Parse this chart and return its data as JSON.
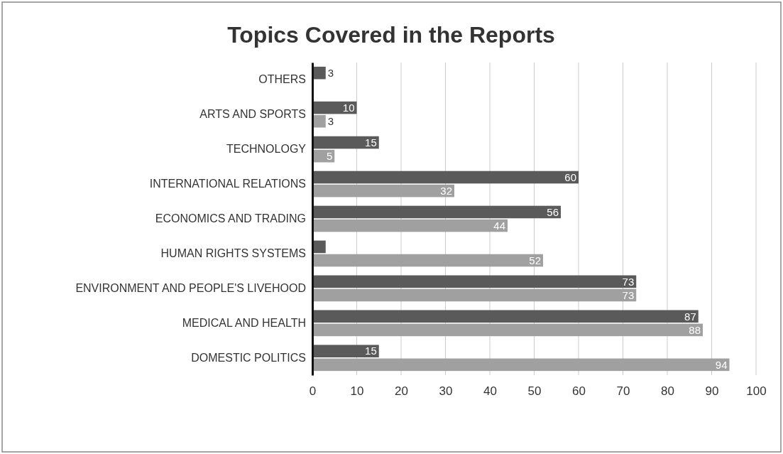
{
  "chart_data": {
    "type": "bar",
    "orientation": "horizontal",
    "title": "Topics Covered in the Reports",
    "categories": [
      "OTHERS",
      "ARTS AND SPORTS",
      "TECHNOLOGY",
      "INTERNATIONAL RELATIONS",
      "ECONOMICS AND TRADING",
      "HUMAN RIGHTS SYSTEMS",
      "ENVIRONMENT AND PEOPLE'S LIVEHOOD",
      "MEDICAL AND HEALTH",
      "DOMESTIC POLITICS"
    ],
    "series": [
      {
        "color": "#5a5a5a",
        "values": [
          3,
          10,
          15,
          60,
          56,
          3,
          73,
          87,
          15
        ],
        "value_labels": [
          "3",
          "10",
          "15",
          "60",
          "56",
          null,
          "73",
          "87",
          "15"
        ]
      },
      {
        "color": "#a0a0a0",
        "values": [
          null,
          3,
          5,
          32,
          44,
          52,
          73,
          88,
          94
        ],
        "value_labels": [
          null,
          "3",
          "5",
          "32",
          "44",
          "52",
          "73",
          "88",
          "94"
        ]
      }
    ],
    "xlim": [
      0,
      100
    ],
    "xticks": [
      0,
      10,
      20,
      30,
      40,
      50,
      60,
      70,
      80,
      90,
      100
    ],
    "grid": "x"
  }
}
